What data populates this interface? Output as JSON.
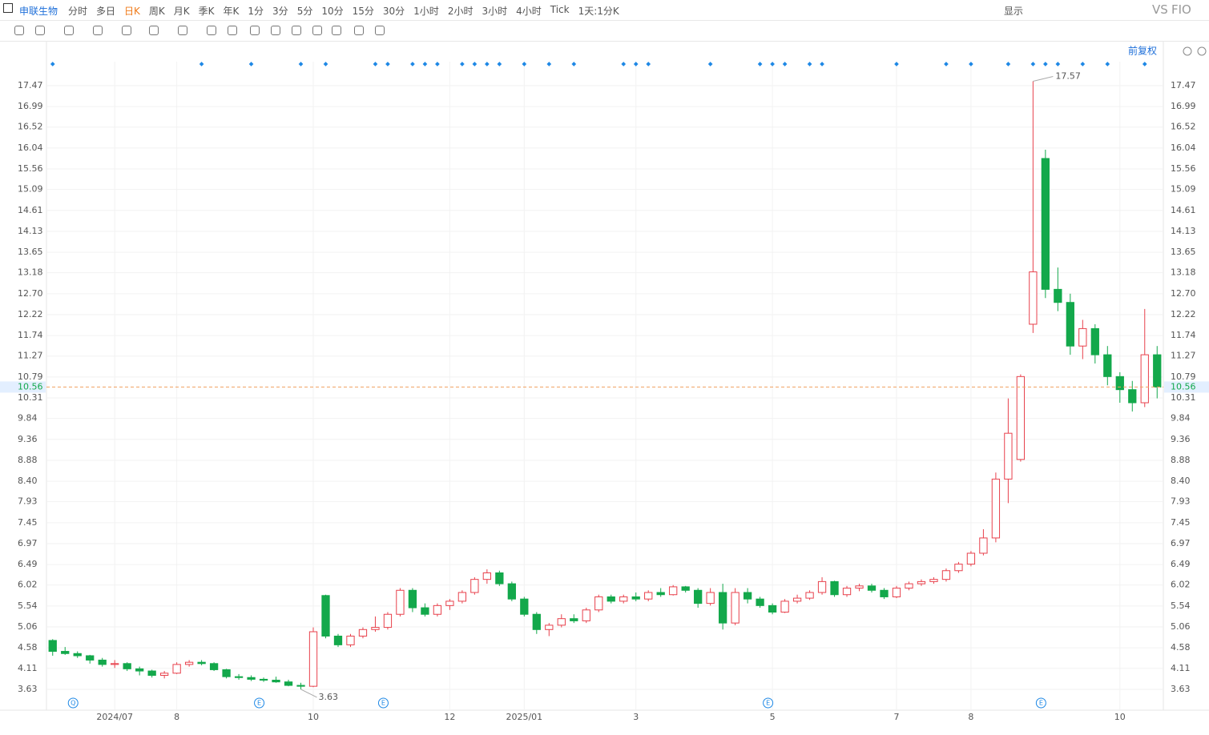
{
  "toolbar": {
    "symbol": "申联生物",
    "periods": [
      "分时",
      "多日",
      "日K",
      "周K",
      "月K",
      "季K",
      "年K",
      "1分",
      "3分",
      "5分",
      "10分",
      "15分",
      "30分",
      "1小时",
      "2小时",
      "3小时",
      "4小时",
      "Tick",
      "1天:1分K"
    ],
    "active": "日K",
    "display": "显示",
    "vs": "VS",
    "f10": "FIO",
    "adjust": "前复权"
  },
  "chart_data": {
    "type": "candlestick",
    "categories": [
      null,
      null,
      null,
      null,
      null,
      "2024/07",
      null,
      null,
      null,
      null,
      "8",
      null,
      null,
      null,
      null,
      null,
      null,
      null,
      null,
      null,
      null,
      "10",
      null,
      null,
      null,
      null,
      null,
      null,
      null,
      null,
      null,
      null,
      "12",
      null,
      null,
      null,
      null,
      null,
      "2025/01",
      null,
      null,
      null,
      null,
      null,
      null,
      null,
      null,
      "3",
      null,
      null,
      null,
      null,
      null,
      null,
      null,
      null,
      null,
      null,
      "5",
      null,
      null,
      null,
      null,
      null,
      null,
      null,
      null,
      null,
      "7",
      null,
      null,
      null,
      null,
      null,
      "8",
      null,
      null,
      null,
      null,
      null,
      null,
      null,
      null,
      null,
      null,
      null,
      "10",
      null,
      null,
      null
    ],
    "ohlc": [
      [
        4.75,
        4.78,
        4.4,
        4.5
      ],
      [
        4.5,
        4.6,
        4.42,
        4.45
      ],
      [
        4.45,
        4.5,
        4.35,
        4.4
      ],
      [
        4.4,
        4.42,
        4.22,
        4.3
      ],
      [
        4.3,
        4.35,
        4.15,
        4.2
      ],
      [
        4.2,
        4.3,
        4.12,
        4.22
      ],
      [
        4.22,
        4.25,
        4.05,
        4.1
      ],
      [
        4.1,
        4.15,
        3.95,
        4.05
      ],
      [
        4.05,
        4.08,
        3.9,
        3.95
      ],
      [
        3.95,
        4.05,
        3.88,
        4.0
      ],
      [
        4.0,
        4.25,
        3.98,
        4.2
      ],
      [
        4.2,
        4.3,
        4.15,
        4.25
      ],
      [
        4.25,
        4.3,
        4.18,
        4.22
      ],
      [
        4.22,
        4.25,
        4.05,
        4.08
      ],
      [
        4.08,
        4.1,
        3.88,
        3.92
      ],
      [
        3.92,
        3.98,
        3.85,
        3.9
      ],
      [
        3.9,
        3.95,
        3.82,
        3.86
      ],
      [
        3.86,
        3.9,
        3.8,
        3.84
      ],
      [
        3.84,
        3.92,
        3.78,
        3.8
      ],
      [
        3.8,
        3.85,
        3.7,
        3.72
      ],
      [
        3.72,
        3.78,
        3.63,
        3.7
      ],
      [
        3.7,
        5.05,
        3.68,
        4.95
      ],
      [
        5.78,
        5.8,
        4.8,
        4.85
      ],
      [
        4.85,
        4.9,
        4.6,
        4.65
      ],
      [
        4.65,
        4.9,
        4.6,
        4.85
      ],
      [
        4.85,
        5.05,
        4.8,
        5.0
      ],
      [
        5.0,
        5.3,
        4.95,
        5.05
      ],
      [
        5.05,
        5.4,
        5.0,
        5.35
      ],
      [
        5.35,
        5.95,
        5.3,
        5.9
      ],
      [
        5.9,
        5.95,
        5.4,
        5.5
      ],
      [
        5.5,
        5.6,
        5.3,
        5.35
      ],
      [
        5.35,
        5.6,
        5.3,
        5.55
      ],
      [
        5.55,
        5.7,
        5.45,
        5.65
      ],
      [
        5.65,
        5.9,
        5.6,
        5.85
      ],
      [
        5.85,
        6.2,
        5.8,
        6.15
      ],
      [
        6.15,
        6.38,
        6.05,
        6.3
      ],
      [
        6.3,
        6.35,
        6.0,
        6.05
      ],
      [
        6.05,
        6.1,
        5.65,
        5.7
      ],
      [
        5.7,
        5.75,
        5.3,
        5.35
      ],
      [
        5.35,
        5.4,
        4.9,
        5.0
      ],
      [
        5.0,
        5.15,
        4.85,
        5.1
      ],
      [
        5.1,
        5.35,
        5.05,
        5.25
      ],
      [
        5.25,
        5.35,
        5.15,
        5.2
      ],
      [
        5.2,
        5.5,
        5.15,
        5.45
      ],
      [
        5.45,
        5.8,
        5.4,
        5.75
      ],
      [
        5.75,
        5.8,
        5.6,
        5.65
      ],
      [
        5.65,
        5.8,
        5.6,
        5.75
      ],
      [
        5.75,
        5.85,
        5.65,
        5.7
      ],
      [
        5.7,
        5.9,
        5.65,
        5.85
      ],
      [
        5.85,
        5.95,
        5.75,
        5.8
      ],
      [
        5.8,
        6.02,
        5.78,
        5.98
      ],
      [
        5.98,
        6.0,
        5.85,
        5.9
      ],
      [
        5.9,
        5.95,
        5.5,
        5.6
      ],
      [
        5.6,
        5.95,
        5.55,
        5.85
      ],
      [
        5.85,
        6.05,
        5.0,
        5.15
      ],
      [
        5.15,
        5.95,
        5.1,
        5.85
      ],
      [
        5.85,
        5.95,
        5.6,
        5.7
      ],
      [
        5.7,
        5.75,
        5.5,
        5.55
      ],
      [
        5.55,
        5.6,
        5.35,
        5.4
      ],
      [
        5.4,
        5.7,
        5.38,
        5.65
      ],
      [
        5.65,
        5.8,
        5.6,
        5.72
      ],
      [
        5.72,
        5.9,
        5.68,
        5.85
      ],
      [
        5.85,
        6.2,
        5.8,
        6.1
      ],
      [
        6.1,
        6.12,
        5.75,
        5.8
      ],
      [
        5.8,
        6.0,
        5.75,
        5.95
      ],
      [
        5.95,
        6.05,
        5.88,
        6.0
      ],
      [
        6.0,
        6.05,
        5.85,
        5.9
      ],
      [
        5.9,
        5.95,
        5.7,
        5.75
      ],
      [
        5.75,
        6.0,
        5.72,
        5.95
      ],
      [
        5.95,
        6.1,
        5.9,
        6.05
      ],
      [
        6.05,
        6.15,
        6.0,
        6.1
      ],
      [
        6.1,
        6.2,
        6.05,
        6.15
      ],
      [
        6.15,
        6.4,
        6.1,
        6.35
      ],
      [
        6.35,
        6.55,
        6.3,
        6.5
      ],
      [
        6.5,
        6.8,
        6.45,
        6.75
      ],
      [
        6.75,
        7.3,
        6.7,
        7.1
      ],
      [
        7.1,
        8.6,
        7.0,
        8.45
      ],
      [
        8.45,
        10.3,
        7.9,
        9.5
      ],
      [
        8.9,
        10.85,
        8.85,
        10.8
      ],
      [
        12.0,
        17.57,
        11.8,
        13.2
      ],
      [
        15.8,
        16.0,
        12.6,
        12.8
      ],
      [
        12.8,
        13.3,
        12.3,
        12.5
      ],
      [
        12.5,
        12.7,
        11.3,
        11.5
      ],
      [
        11.5,
        12.1,
        11.2,
        11.9
      ],
      [
        11.9,
        12.0,
        11.1,
        11.3
      ],
      [
        11.3,
        11.5,
        10.6,
        10.8
      ],
      [
        10.8,
        10.9,
        10.2,
        10.5
      ],
      [
        10.5,
        10.7,
        10.0,
        10.2
      ],
      [
        10.2,
        12.35,
        10.1,
        11.3
      ],
      [
        11.3,
        11.5,
        10.3,
        10.56
      ]
    ],
    "up_color": "#e8414c",
    "down_color": "#13a84b",
    "ylim": [
      3.17,
      18.02
    ],
    "yticks": [
      3.63,
      4.11,
      4.58,
      5.06,
      5.54,
      6.02,
      6.49,
      6.97,
      7.45,
      7.93,
      {
        "value": 8.4,
        "label": "8.40"
      },
      8.88,
      9.36,
      9.84,
      10.31,
      10.79,
      11.27,
      11.74,
      12.22,
      {
        "value": 12.7,
        "label": "12.70"
      },
      13.18,
      13.65,
      14.13,
      14.61,
      15.09,
      15.56,
      16.04,
      16.52,
      16.99,
      17.47
    ],
    "grid": true,
    "last_price": 10.56,
    "high_label": 17.57,
    "low_label": 3.63,
    "event_badges": [
      "Q",
      "E",
      "E",
      "E",
      "E"
    ]
  }
}
